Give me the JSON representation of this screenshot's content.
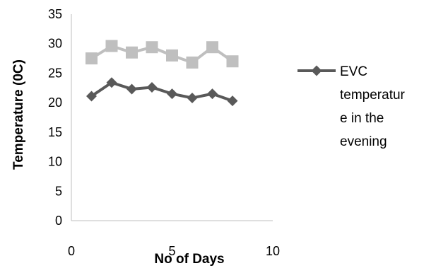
{
  "chart_data": {
    "type": "line",
    "title": "",
    "xlabel": "No of Days",
    "ylabel": "Temperature (0C)",
    "xlim": [
      0,
      10
    ],
    "ylim": [
      0,
      35
    ],
    "x_ticks": [
      0,
      5,
      10
    ],
    "y_ticks": [
      0,
      5,
      10,
      15,
      20,
      25,
      30,
      35
    ],
    "grid": false,
    "legend_position": "right",
    "series": [
      {
        "x": [
          1,
          2,
          3,
          4,
          5,
          6,
          7,
          8
        ],
        "values": [
          27.5,
          29.6,
          28.5,
          29.4,
          28.0,
          26.8,
          29.4,
          27.0
        ],
        "color": "#bfbfbf",
        "marker": "square",
        "in_legend": false
      },
      {
        "name": "EVC temperature in the evening",
        "x": [
          1,
          2,
          3,
          4,
          5,
          6,
          7,
          8
        ],
        "values": [
          21.1,
          23.4,
          22.3,
          22.6,
          21.5,
          20.8,
          21.5,
          20.3
        ],
        "color": "#595959",
        "marker": "diamond",
        "in_legend": true
      }
    ]
  }
}
